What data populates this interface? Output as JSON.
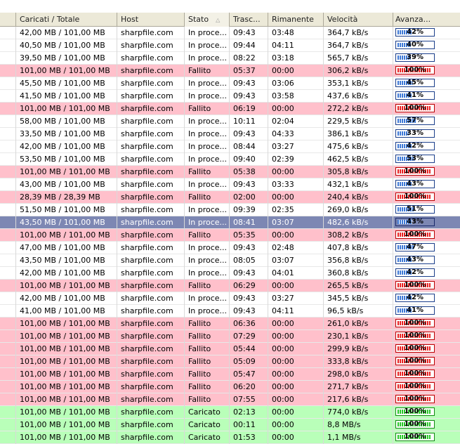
{
  "headers": [
    "",
    "Caricati / Totale",
    "Host",
    "Stato",
    "Trasc...",
    "Rimanente",
    "Velocità",
    "Avanza..."
  ],
  "sort_indicator": "△",
  "colors": {
    "failed": "#ffc0cb",
    "done": "#b9ffb9",
    "selected": "#7d87b3",
    "bar_blue": "#3e79d6",
    "bar_red": "#e82020",
    "bar_green": "#28c828"
  },
  "rows": [
    {
      "size": "42,00 MB / 101,00 MB",
      "host": "sharpfile.com",
      "status": "In proce...",
      "elapsed": "09:43",
      "remaining": "03:48",
      "speed": "364,7 kB/s",
      "progress": "42%",
      "progress_value": 42,
      "state": "in-progress"
    },
    {
      "size": "40,50 MB / 101,00 MB",
      "host": "sharpfile.com",
      "status": "In proce...",
      "elapsed": "09:44",
      "remaining": "04:11",
      "speed": "364,7 kB/s",
      "progress": "40%",
      "progress_value": 40,
      "state": "in-progress"
    },
    {
      "size": "39,50 MB / 101,00 MB",
      "host": "sharpfile.com",
      "status": "In proce...",
      "elapsed": "08:22",
      "remaining": "03:18",
      "speed": "565,7 kB/s",
      "progress": "39%",
      "progress_value": 39,
      "state": "in-progress"
    },
    {
      "size": "101,00 MB / 101,00 MB",
      "host": "sharpfile.com",
      "status": "Fallito",
      "elapsed": "05:37",
      "remaining": "00:00",
      "speed": "306,2 kB/s",
      "progress": "100%",
      "progress_value": 100,
      "state": "failed"
    },
    {
      "size": "45,50 MB / 101,00 MB",
      "host": "sharpfile.com",
      "status": "In proce...",
      "elapsed": "09:43",
      "remaining": "03:06",
      "speed": "353,1 kB/s",
      "progress": "45%",
      "progress_value": 45,
      "state": "in-progress"
    },
    {
      "size": "41,50 MB / 101,00 MB",
      "host": "sharpfile.com",
      "status": "In proce...",
      "elapsed": "09:43",
      "remaining": "03:58",
      "speed": "437,6 kB/s",
      "progress": "41%",
      "progress_value": 41,
      "state": "in-progress"
    },
    {
      "size": "101,00 MB / 101,00 MB",
      "host": "sharpfile.com",
      "status": "Fallito",
      "elapsed": "06:19",
      "remaining": "00:00",
      "speed": "272,2 kB/s",
      "progress": "100%",
      "progress_value": 100,
      "state": "failed"
    },
    {
      "size": "58,00 MB / 101,00 MB",
      "host": "sharpfile.com",
      "status": "In proce...",
      "elapsed": "10:11",
      "remaining": "02:04",
      "speed": "229,5 kB/s",
      "progress": "57%",
      "progress_value": 57,
      "state": "in-progress"
    },
    {
      "size": "33,50 MB / 101,00 MB",
      "host": "sharpfile.com",
      "status": "In proce...",
      "elapsed": "09:43",
      "remaining": "04:33",
      "speed": "386,1 kB/s",
      "progress": "33%",
      "progress_value": 33,
      "state": "in-progress"
    },
    {
      "size": "42,00 MB / 101,00 MB",
      "host": "sharpfile.com",
      "status": "In proce...",
      "elapsed": "08:44",
      "remaining": "03:27",
      "speed": "475,6 kB/s",
      "progress": "42%",
      "progress_value": 42,
      "state": "in-progress"
    },
    {
      "size": "53,50 MB / 101,00 MB",
      "host": "sharpfile.com",
      "status": "In proce...",
      "elapsed": "09:40",
      "remaining": "02:39",
      "speed": "462,5 kB/s",
      "progress": "53%",
      "progress_value": 53,
      "state": "in-progress"
    },
    {
      "size": "101,00 MB / 101,00 MB",
      "host": "sharpfile.com",
      "status": "Fallito",
      "elapsed": "05:38",
      "remaining": "00:00",
      "speed": "305,8 kB/s",
      "progress": "100%",
      "progress_value": 100,
      "state": "failed"
    },
    {
      "size": "43,00 MB / 101,00 MB",
      "host": "sharpfile.com",
      "status": "In proce...",
      "elapsed": "09:43",
      "remaining": "03:33",
      "speed": "432,1 kB/s",
      "progress": "43%",
      "progress_value": 43,
      "state": "in-progress"
    },
    {
      "size": "28,39 MB / 28,39 MB",
      "host": "sharpfile.com",
      "status": "Fallito",
      "elapsed": "02:00",
      "remaining": "00:00",
      "speed": "240,4 kB/s",
      "progress": "100%",
      "progress_value": 100,
      "state": "failed"
    },
    {
      "size": "51,50 MB / 101,00 MB",
      "host": "sharpfile.com",
      "status": "In proce...",
      "elapsed": "09:39",
      "remaining": "02:35",
      "speed": "269,0 kB/s",
      "progress": "51%",
      "progress_value": 51,
      "state": "in-progress"
    },
    {
      "size": "43,50 MB / 101,00 MB",
      "host": "sharpfile.com",
      "status": "In proce...",
      "elapsed": "08:41",
      "remaining": "03:07",
      "speed": "482,6 kB/s",
      "progress": "43%",
      "progress_value": 43,
      "state": "selected"
    },
    {
      "size": "101,00 MB / 101,00 MB",
      "host": "sharpfile.com",
      "status": "Fallito",
      "elapsed": "05:35",
      "remaining": "00:00",
      "speed": "308,2 kB/s",
      "progress": "100%",
      "progress_value": 100,
      "state": "failed"
    },
    {
      "size": "47,00 MB / 101,00 MB",
      "host": "sharpfile.com",
      "status": "In proce...",
      "elapsed": "09:43",
      "remaining": "02:48",
      "speed": "407,8 kB/s",
      "progress": "47%",
      "progress_value": 47,
      "state": "in-progress"
    },
    {
      "size": "43,50 MB / 101,00 MB",
      "host": "sharpfile.com",
      "status": "In proce...",
      "elapsed": "08:05",
      "remaining": "03:07",
      "speed": "356,8 kB/s",
      "progress": "43%",
      "progress_value": 43,
      "state": "in-progress"
    },
    {
      "size": "42,00 MB / 101,00 MB",
      "host": "sharpfile.com",
      "status": "In proce...",
      "elapsed": "09:43",
      "remaining": "04:01",
      "speed": "360,8 kB/s",
      "progress": "42%",
      "progress_value": 42,
      "state": "in-progress"
    },
    {
      "size": "101,00 MB / 101,00 MB",
      "host": "sharpfile.com",
      "status": "Fallito",
      "elapsed": "06:29",
      "remaining": "00:00",
      "speed": "265,5 kB/s",
      "progress": "100%",
      "progress_value": 100,
      "state": "failed"
    },
    {
      "size": "42,00 MB / 101,00 MB",
      "host": "sharpfile.com",
      "status": "In proce...",
      "elapsed": "09:43",
      "remaining": "03:27",
      "speed": "345,5 kB/s",
      "progress": "42%",
      "progress_value": 42,
      "state": "in-progress"
    },
    {
      "size": "41,00 MB / 101,00 MB",
      "host": "sharpfile.com",
      "status": "In proce...",
      "elapsed": "09:43",
      "remaining": "04:11",
      "speed": "96,5 kB/s",
      "progress": "41%",
      "progress_value": 41,
      "state": "in-progress"
    },
    {
      "size": "101,00 MB / 101,00 MB",
      "host": "sharpfile.com",
      "status": "Fallito",
      "elapsed": "06:36",
      "remaining": "00:00",
      "speed": "261,0 kB/s",
      "progress": "100%",
      "progress_value": 100,
      "state": "failed"
    },
    {
      "size": "101,00 MB / 101,00 MB",
      "host": "sharpfile.com",
      "status": "Fallito",
      "elapsed": "07:29",
      "remaining": "00:00",
      "speed": "230,1 kB/s",
      "progress": "100%",
      "progress_value": 100,
      "state": "failed"
    },
    {
      "size": "101,00 MB / 101,00 MB",
      "host": "sharpfile.com",
      "status": "Fallito",
      "elapsed": "05:44",
      "remaining": "00:00",
      "speed": "299,9 kB/s",
      "progress": "100%",
      "progress_value": 100,
      "state": "failed"
    },
    {
      "size": "101,00 MB / 101,00 MB",
      "host": "sharpfile.com",
      "status": "Fallito",
      "elapsed": "05:09",
      "remaining": "00:00",
      "speed": "333,8 kB/s",
      "progress": "100%",
      "progress_value": 100,
      "state": "failed"
    },
    {
      "size": "101,00 MB / 101,00 MB",
      "host": "sharpfile.com",
      "status": "Fallito",
      "elapsed": "05:47",
      "remaining": "00:00",
      "speed": "298,0 kB/s",
      "progress": "100%",
      "progress_value": 100,
      "state": "failed"
    },
    {
      "size": "101,00 MB / 101,00 MB",
      "host": "sharpfile.com",
      "status": "Fallito",
      "elapsed": "06:20",
      "remaining": "00:00",
      "speed": "271,7 kB/s",
      "progress": "100%",
      "progress_value": 100,
      "state": "failed"
    },
    {
      "size": "101,00 MB / 101,00 MB",
      "host": "sharpfile.com",
      "status": "Fallito",
      "elapsed": "07:55",
      "remaining": "00:00",
      "speed": "217,6 kB/s",
      "progress": "100%",
      "progress_value": 100,
      "state": "failed"
    },
    {
      "size": "101,00 MB / 101,00 MB",
      "host": "sharpfile.com",
      "status": "Caricato",
      "elapsed": "02:13",
      "remaining": "00:00",
      "speed": "774,0 kB/s",
      "progress": "100%",
      "progress_value": 100,
      "state": "done"
    },
    {
      "size": "101,00 MB / 101,00 MB",
      "host": "sharpfile.com",
      "status": "Caricato",
      "elapsed": "00:11",
      "remaining": "00:00",
      "speed": "8,8 MB/s",
      "progress": "100%",
      "progress_value": 100,
      "state": "done"
    },
    {
      "size": "101,00 MB / 101,00 MB",
      "host": "sharpfile.com",
      "status": "Caricato",
      "elapsed": "01:53",
      "remaining": "00:00",
      "speed": "1,1 MB/s",
      "progress": "100%",
      "progress_value": 100,
      "state": "done"
    }
  ]
}
